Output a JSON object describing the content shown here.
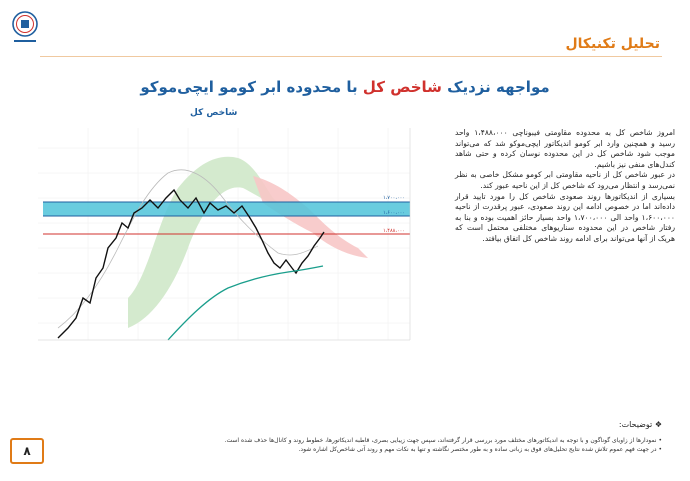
{
  "header": {
    "section_title": "تحلیل تکنیکال"
  },
  "headline": {
    "prefix": "مواجهه نزدیک ",
    "highlight": "شاخص کل",
    "suffix": " با محدوده ابر کومو ایچی‌موکو"
  },
  "chart_title": "شاخص کل",
  "chart_data": {
    "type": "line",
    "levels": [
      {
        "label": "۱،۷۰۰،۰۰۰",
        "value": 1700000,
        "color": "#1f5f9f"
      },
      {
        "label": "۱،۶۰۰،۰۰۰",
        "value": 1600000,
        "color": "#1f5f9f"
      },
      {
        "label": "۱،۴۸۸،۰۰۰",
        "value": 1488000,
        "color": "#d0312d"
      }
    ]
  },
  "body": {
    "p1": "امروز شاخص کل به محدوده مقاومتی فیبوناچی ۱،۴۸۸،۰۰۰ واحد رسید و همچنین وارد ابر کومو اندیکاتور ایچی‌موکو شد که می‌تواند موجب شود شاخص کل در این محدوده نوسان کرده و حتی شاهد کندل‌های منفی نیز باشیم.",
    "p2": "در عبور شاخص کل از ناحیه مقاومتی ابر کومو مشکل خاصی به نظر نمی‌رسد و انتظار می‌رود که شاخص کل از این ناحیه عبور کند.",
    "p3": "بسیاری از اندیکاتورها روند صعودی شاخص کل را مورد تایید قرار داده‌اند اما در خصوص ادامه این روند صعودی، عبور پرقدرت از ناحیه ۱،۶۰۰،۰۰۰ واحد الی ۱،۷۰۰،۰۰۰ واحد بسیار حائز اهمیت بوده و بنا به رفتار شاخص در این محدوده سناریوهای مختلفی محتمل است که هریک از آنها می‌تواند برای ادامه روند شاخص کل اتفاق بیافتد."
  },
  "notes": {
    "heading": "توضیحات:",
    "items": [
      "نمودارها از زاویای گوناگون و با توجه به اندیکاتورهای مختلف مورد بررسی قرار گرفته‌اند، سپس جهت زیبایی بصری، قاطبه اندیکاتورها، خطوط روند و کانال‌ها حذف شده است.",
      "در جهت فهم عموم تلاش شده نتایج تحلیل‌های فوق به زبانی ساده و به طور مختصر نگاشته و تنها به نکات مهم و روند آتی شاخص‌کل اشاره شود."
    ]
  },
  "page_number": "۸"
}
